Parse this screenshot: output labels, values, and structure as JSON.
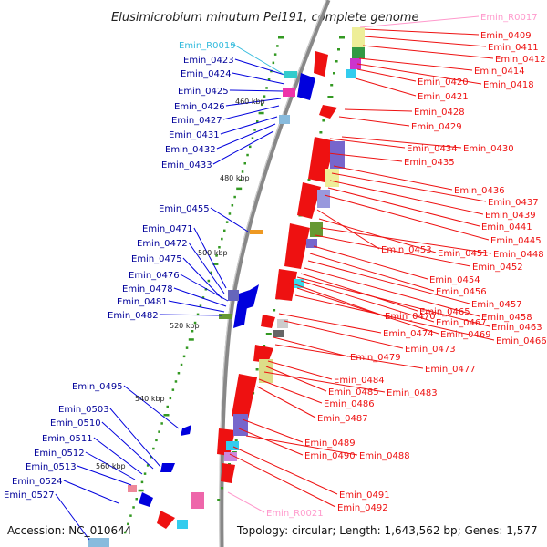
{
  "title": "Elusimicrobium minutum Pei191, complete genome",
  "accession": "Accession: NC_010644",
  "topology": "Topology: circular; Length: 1,643,562 bp; Genes: 1,577",
  "colors": {
    "forward": "#0000dd",
    "reverse": "#ee1111",
    "rna": "#ff99cc",
    "rna_cyan": "#33bbdd",
    "backbone": "#888888",
    "tick": "#339922"
  },
  "scale_labels": [
    "460 kbp",
    "480 kbp",
    "500 kbp",
    "520 kbp",
    "540 kbp",
    "560 kbp"
  ],
  "left_labels": [
    "Emin_0423",
    "Emin_0424",
    "Emin_0425",
    "Emin_0426",
    "Emin_0427",
    "Emin_0431",
    "Emin_0432",
    "Emin_0433",
    "Emin_0455",
    "Emin_0471",
    "Emin_0472",
    "Emin_0475",
    "Emin_0476",
    "Emin_0478",
    "Emin_0481",
    "Emin_0482",
    "Emin_0495",
    "Emin_0503",
    "Emin_0510",
    "Emin_0511",
    "Emin_0512",
    "Emin_0513",
    "Emin_0524",
    "Emin_0527"
  ],
  "right_labels": [
    "Emin_0409",
    "Emin_0411",
    "Emin_0412",
    "Emin_0414",
    "Emin_0420",
    "Emin_0418",
    "Emin_0421",
    "Emin_0428",
    "Emin_0429",
    "Emin_0434",
    "Emin_0430",
    "Emin_0435",
    "Emin_0436",
    "Emin_0437",
    "Emin_0439",
    "Emin_0441",
    "Emin_0445",
    "Emin_0453",
    "Emin_0451",
    "Emin_0448",
    "Emin_0452",
    "Emin_0454",
    "Emin_0456",
    "Emin_0457",
    "Emin_0458",
    "Emin_0465",
    "Emin_0463",
    "Emin_0470",
    "Emin_0467",
    "Emin_0469",
    "Emin_0466",
    "Emin_0474",
    "Emin_0473",
    "Emin_0479",
    "Emin_0477",
    "Emin_0484",
    "Emin_0485",
    "Emin_0483",
    "Emin_0486",
    "Emin_0487",
    "Emin_0489",
    "Emin_0490",
    "Emin_0488",
    "Emin_0491",
    "Emin_0492"
  ],
  "rna_labels": [
    "Emin_R0017",
    "Emin_R0019",
    "Emin_R0021"
  ]
}
